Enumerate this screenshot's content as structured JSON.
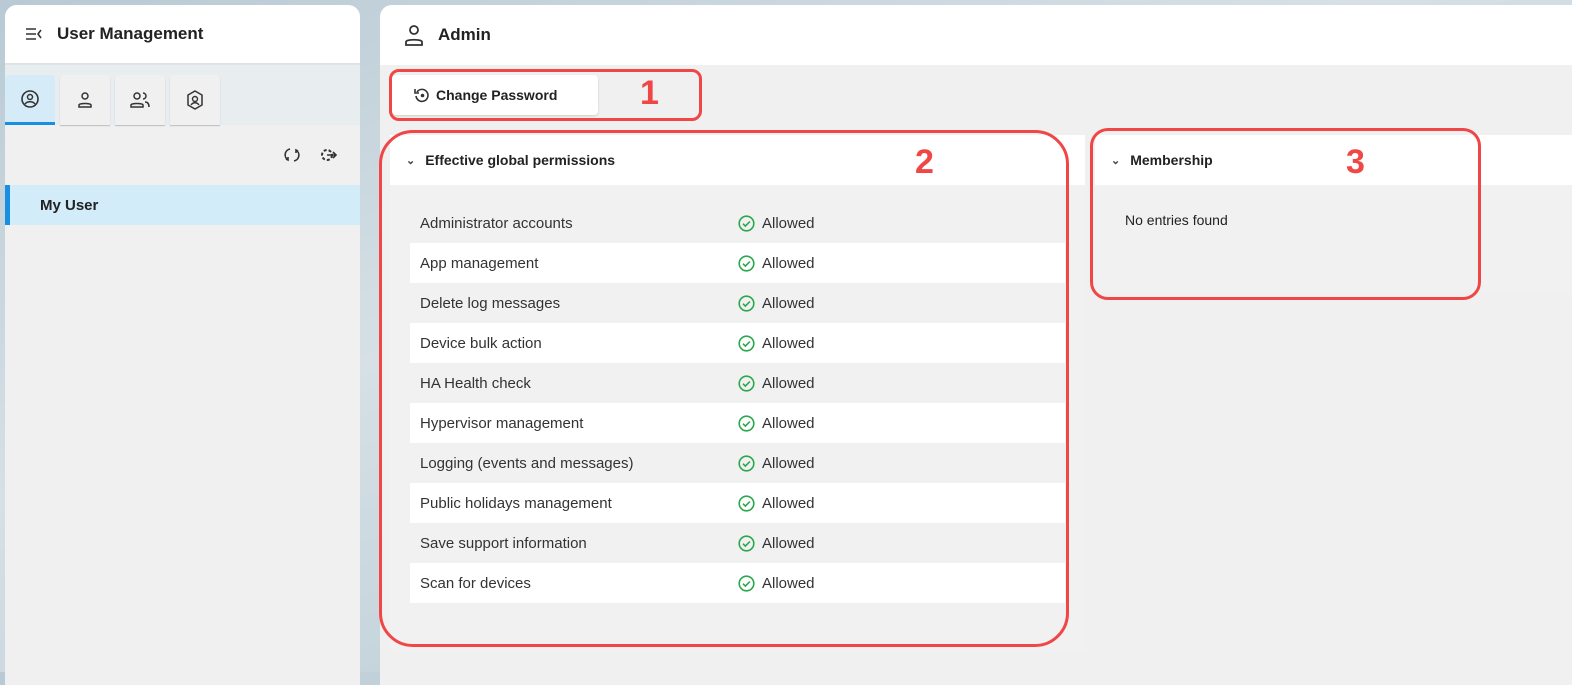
{
  "sidebar": {
    "title": "User Management",
    "tabs": [
      "my-user",
      "user",
      "users-group",
      "role"
    ],
    "items": [
      {
        "label": "My User",
        "selected": true
      }
    ]
  },
  "main": {
    "title": "Admin",
    "change_password_label": "Change Password"
  },
  "permissions": {
    "title": "Effective global permissions",
    "rows": [
      {
        "name": "Administrator accounts",
        "status": "Allowed"
      },
      {
        "name": "App management",
        "status": "Allowed"
      },
      {
        "name": "Delete log messages",
        "status": "Allowed"
      },
      {
        "name": "Device bulk action",
        "status": "Allowed"
      },
      {
        "name": "HA Health check",
        "status": "Allowed"
      },
      {
        "name": "Hypervisor management",
        "status": "Allowed"
      },
      {
        "name": "Logging (events and messages)",
        "status": "Allowed"
      },
      {
        "name": "Public holidays management",
        "status": "Allowed"
      },
      {
        "name": "Save support information",
        "status": "Allowed"
      },
      {
        "name": "Scan for devices",
        "status": "Allowed"
      }
    ]
  },
  "membership": {
    "title": "Membership",
    "empty": "No entries found"
  },
  "annotations": [
    "1",
    "2",
    "3"
  ],
  "colors": {
    "accent": "#1a8ee0",
    "allowed": "#2aa84a",
    "annotation": "#f04646"
  }
}
